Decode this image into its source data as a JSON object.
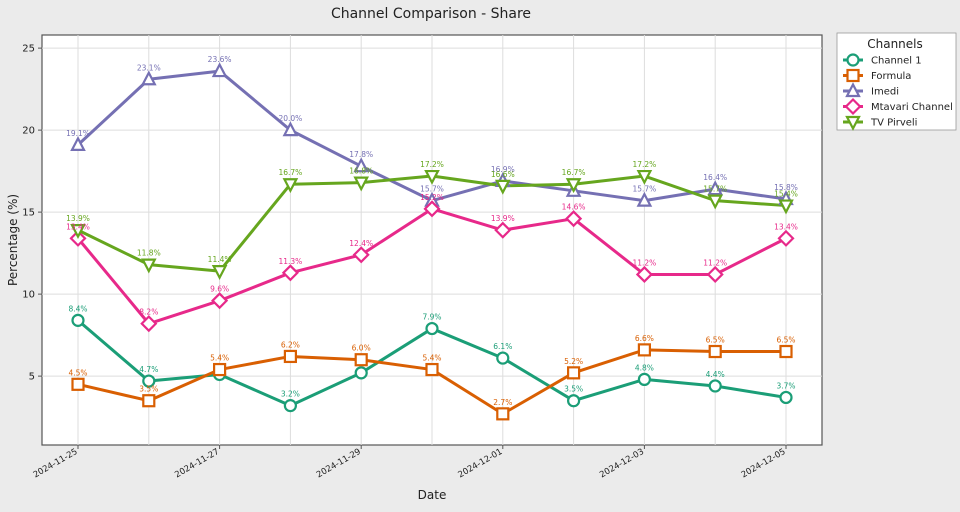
{
  "chart_data": {
    "type": "line",
    "title": "Channel Comparison - Share",
    "xlabel": "Date",
    "ylabel": "Percentage (%)",
    "x": [
      "2024-11-25",
      "2024-11-26",
      "2024-11-27",
      "2024-11-28",
      "2024-11-29",
      "2024-11-30",
      "2024-12-01",
      "2024-12-02",
      "2024-12-03",
      "2024-12-04",
      "2024-12-05"
    ],
    "x_tick_labels": [
      "2024-11-25",
      "2024-11-27",
      "2024-11-29",
      "2024-12-01",
      "2024-12-03",
      "2024-12-05"
    ],
    "ylim": [
      0.8,
      25.8
    ],
    "y_ticks": [
      5,
      10,
      15,
      20,
      25
    ],
    "grid": true,
    "legend": {
      "title": "Channels",
      "position": "outside-top-right"
    },
    "series": [
      {
        "name": "Channel 1",
        "color": "#1b9e77",
        "marker": "circle",
        "values": [
          8.4,
          4.7,
          5.1,
          3.2,
          5.2,
          7.9,
          6.1,
          3.5,
          4.8,
          4.4,
          3.7
        ],
        "labels": [
          "8.4%",
          "4.7%",
          "",
          "3.2%",
          "",
          "7.9%",
          "6.1%",
          "3.5%",
          "4.8%",
          "4.4%",
          "3.7%"
        ]
      },
      {
        "name": "Formula",
        "color": "#d95f02",
        "marker": "square",
        "values": [
          4.5,
          3.5,
          5.4,
          6.2,
          6.0,
          5.4,
          2.7,
          5.2,
          6.6,
          6.5,
          6.5
        ],
        "labels": [
          "4.5%",
          "3.5%",
          "5.4%",
          "6.2%",
          "6.0%",
          "5.4%",
          "2.7%",
          "5.2%",
          "6.6%",
          "6.5%",
          "6.5%"
        ]
      },
      {
        "name": "Imedi",
        "color": "#7570b3",
        "marker": "triangle-up",
        "values": [
          19.1,
          23.1,
          23.6,
          20.0,
          17.8,
          15.7,
          16.9,
          16.3,
          15.7,
          16.4,
          15.8
        ],
        "labels": [
          "19.1%",
          "23.1%",
          "23.6%",
          "20.0%",
          "17.8%",
          "15.7%",
          "16.9%",
          "",
          "15.7%",
          "16.4%",
          "15.8%"
        ]
      },
      {
        "name": "Mtavari Channel",
        "color": "#e7298a",
        "marker": "diamond",
        "values": [
          13.4,
          8.2,
          9.6,
          11.3,
          12.4,
          15.2,
          13.9,
          14.6,
          11.2,
          11.2,
          13.4
        ],
        "labels": [
          "13.4%",
          "8.2%",
          "9.6%",
          "11.3%",
          "12.4%",
          "15.2%",
          "13.9%",
          "14.6%",
          "11.2%",
          "11.2%",
          "13.4%"
        ]
      },
      {
        "name": "TV Pirveli",
        "color": "#66a61e",
        "marker": "triangle-down",
        "values": [
          13.9,
          11.8,
          11.4,
          16.7,
          16.8,
          17.2,
          16.6,
          16.7,
          17.2,
          15.7,
          15.4
        ],
        "labels": [
          "13.9%",
          "11.8%",
          "11.4%",
          "16.7%",
          "16.8%",
          "17.2%",
          "16.6%",
          "16.7%",
          "17.2%",
          "15.7%",
          "15.4%"
        ]
      }
    ]
  }
}
